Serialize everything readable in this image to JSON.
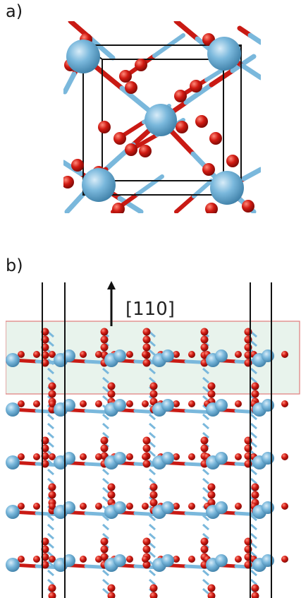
{
  "panel_a": {
    "label": "a)"
  },
  "panel_b": {
    "label": "b)",
    "direction_label": "[110]"
  },
  "colors": {
    "metal_atom": "#7ab8dc",
    "oxygen_atom": "#d11a12",
    "surface_band": "#e8f3ec",
    "surface_border": "#e07a7a",
    "cell_edge": "#111111"
  }
}
